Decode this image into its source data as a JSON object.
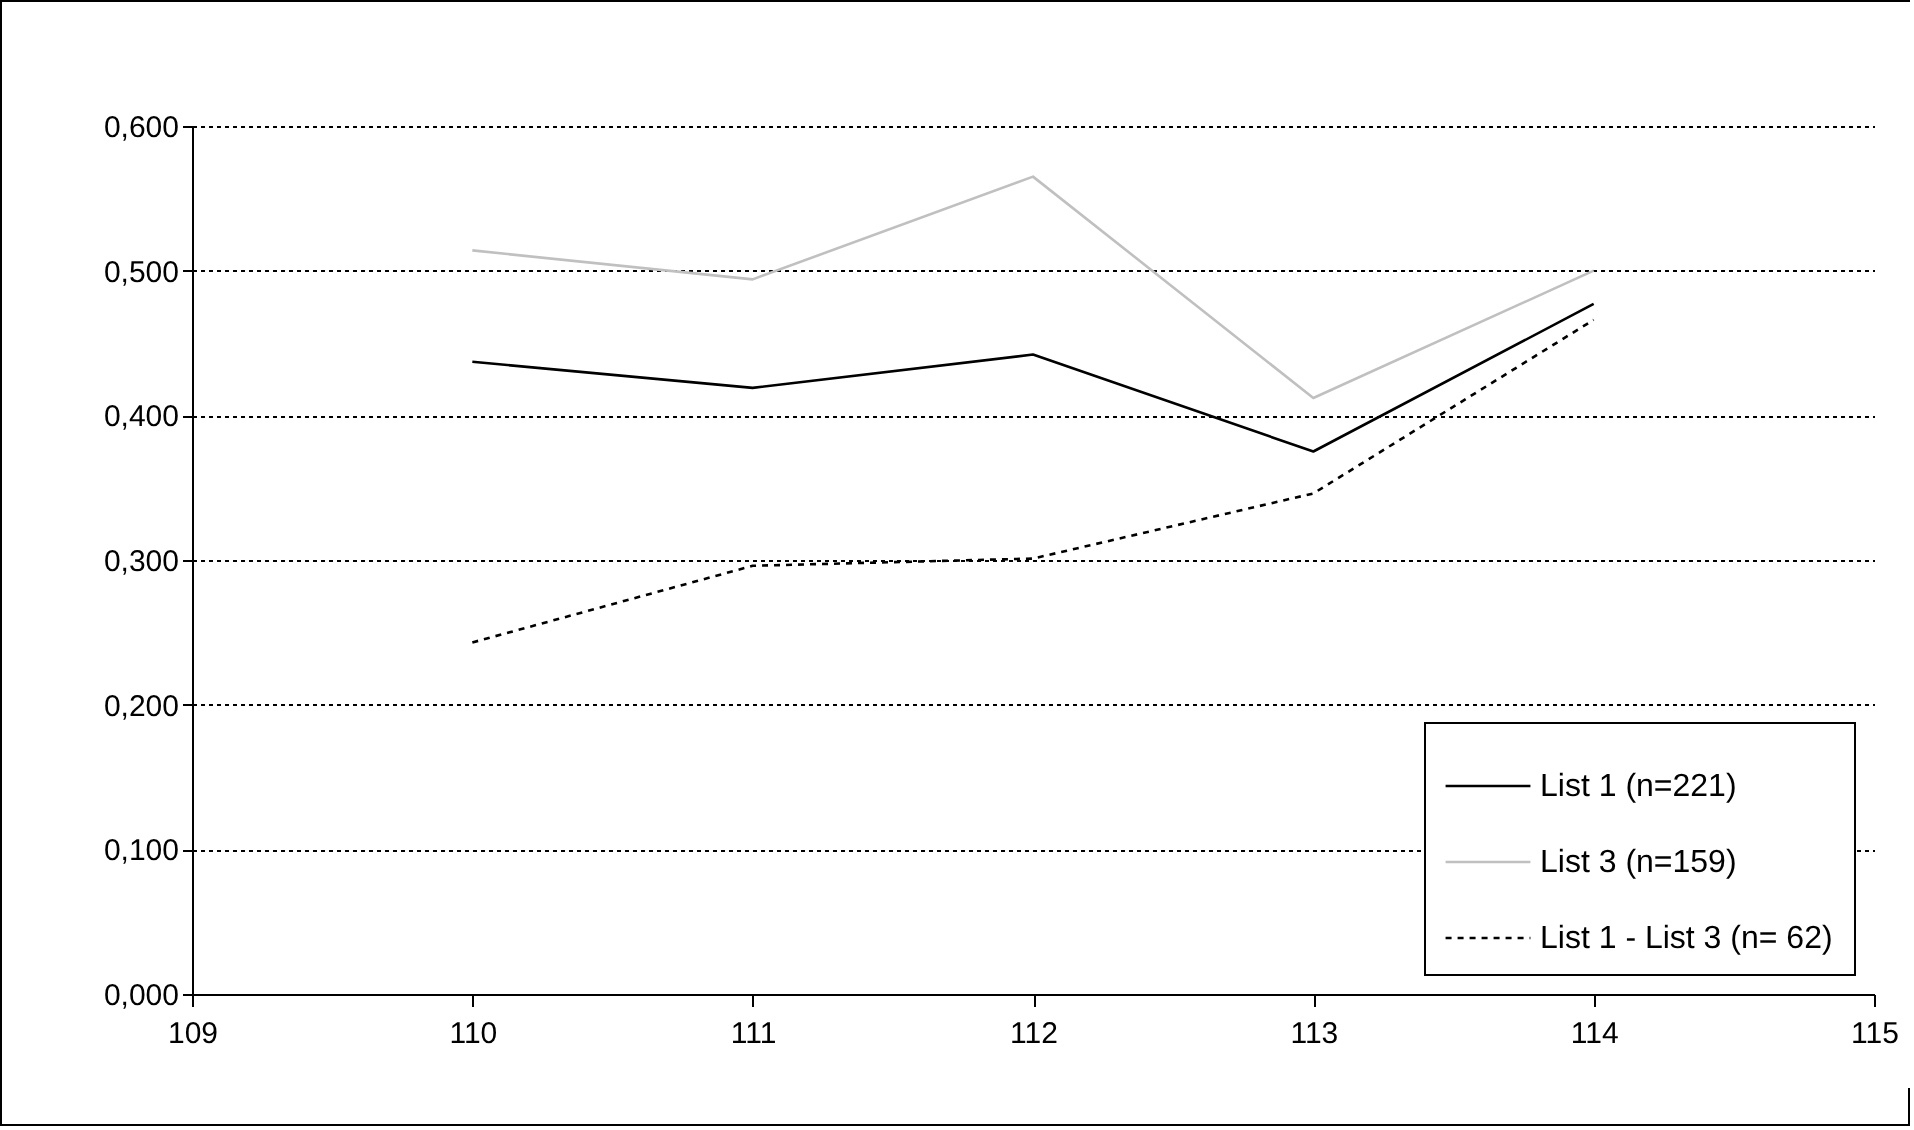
{
  "chart_data": {
    "type": "line",
    "x": [
      110,
      111,
      112,
      113,
      114
    ],
    "series": [
      {
        "name": "List 1 (n=221)",
        "color": "#000000",
        "line_style": "solid",
        "values": [
          0.437,
          0.419,
          0.442,
          0.375,
          0.477
        ]
      },
      {
        "name": "List 3 (n=159)",
        "color": "#c0c0c0",
        "line_style": "solid",
        "values": [
          0.514,
          0.494,
          0.565,
          0.412,
          0.5
        ]
      },
      {
        "name": "List 1 - List 3 (n= 62)",
        "color": "#000000",
        "line_style": "dotted",
        "values": [
          0.243,
          0.296,
          0.301,
          0.346,
          0.466
        ]
      }
    ],
    "xlim": [
      109,
      115
    ],
    "xticks": [
      109,
      110,
      111,
      112,
      113,
      114,
      115
    ],
    "ylim": [
      0,
      0.6
    ],
    "yticks": [
      {
        "value": 0,
        "label": "0,000"
      },
      {
        "value": 0.1,
        "label": "0,100"
      },
      {
        "value": 0.2,
        "label": "0,200"
      },
      {
        "value": 0.3,
        "label": "0,300"
      },
      {
        "value": 0.4,
        "label": "0,400"
      },
      {
        "value": 0.5,
        "label": "0,500"
      },
      {
        "value": 0.6,
        "label": "0,600"
      }
    ],
    "grid": "y",
    "legend": "bottom right",
    "marker": "none"
  }
}
